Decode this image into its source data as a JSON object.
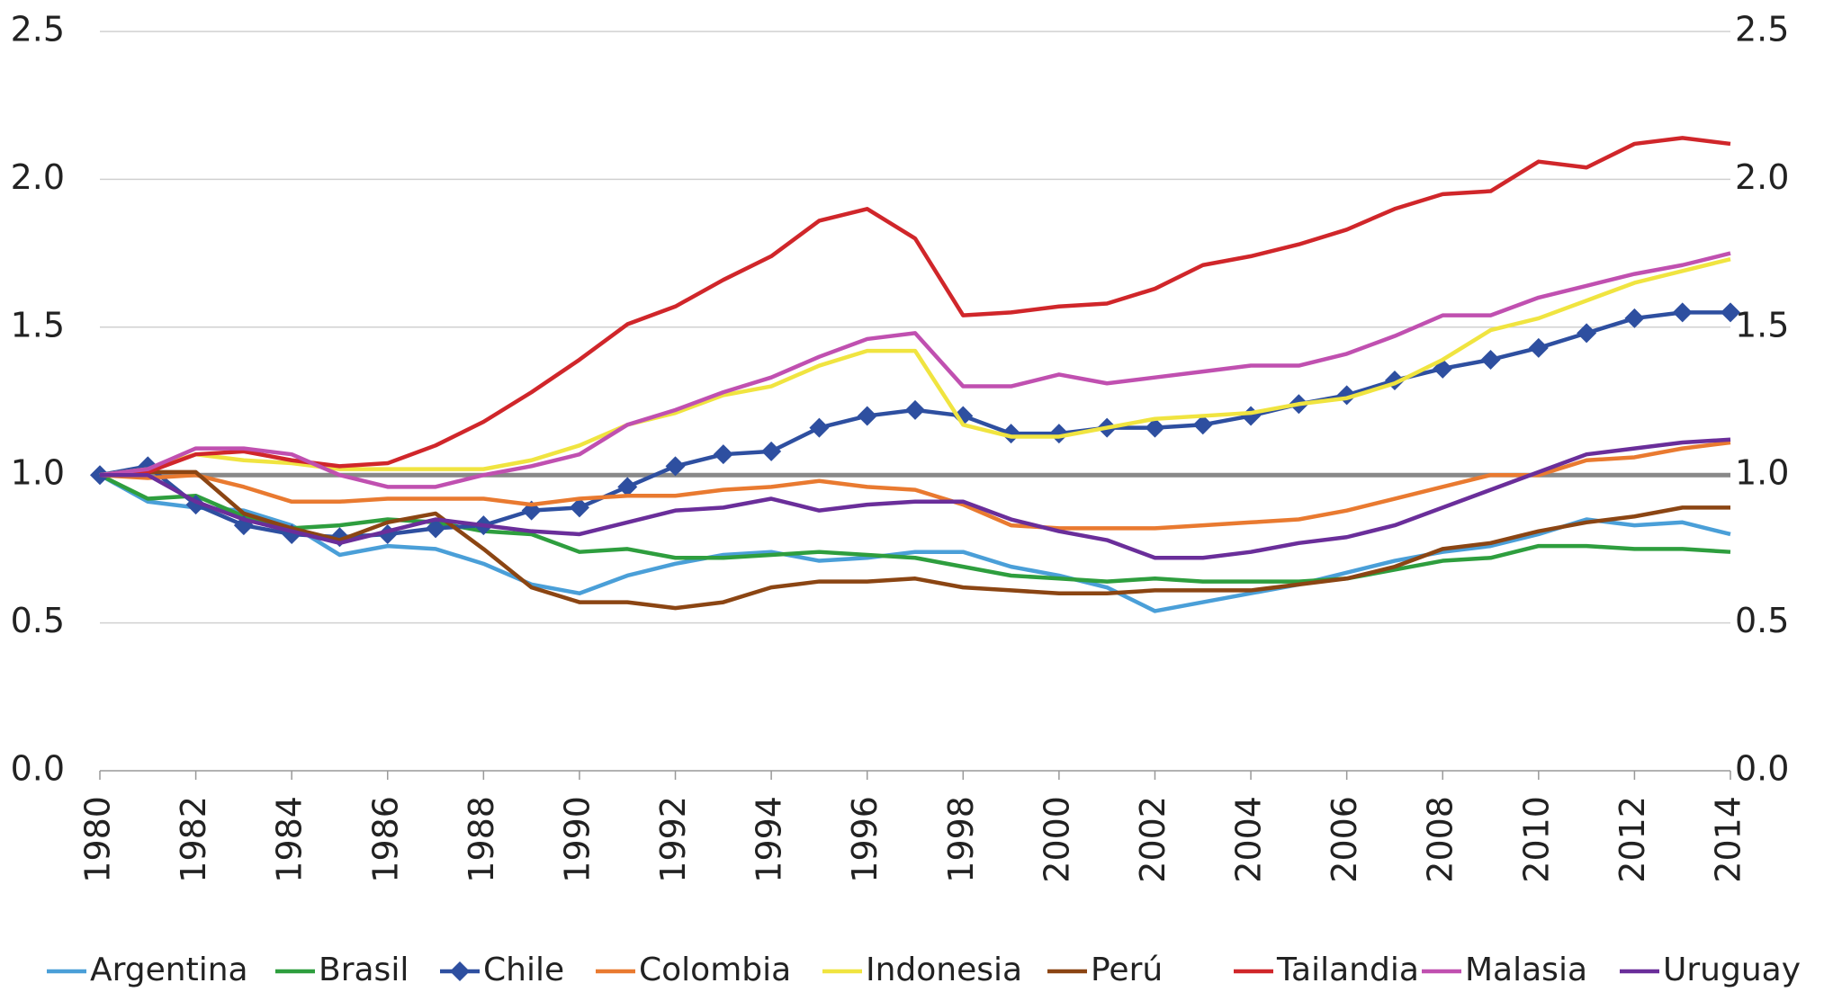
{
  "chart_data": {
    "type": "line",
    "x": [
      1980,
      1981,
      1982,
      1983,
      1984,
      1985,
      1986,
      1987,
      1988,
      1989,
      1990,
      1991,
      1992,
      1993,
      1994,
      1995,
      1996,
      1997,
      1998,
      1999,
      2000,
      2001,
      2002,
      2003,
      2004,
      2005,
      2006,
      2007,
      2008,
      2009,
      2010,
      2011,
      2012,
      2013,
      2014
    ],
    "xlim": [
      1980,
      2014
    ],
    "xticks": [
      1980,
      1982,
      1984,
      1986,
      1988,
      1990,
      1992,
      1994,
      1996,
      1998,
      2000,
      2002,
      2004,
      2006,
      2008,
      2010,
      2012,
      2014
    ],
    "ylim": [
      0,
      2.5
    ],
    "yticks": [
      {
        "value": 0,
        "label": "0.0"
      },
      0.5,
      {
        "value": 1,
        "label": "1.0"
      },
      1.5,
      {
        "value": 2,
        "label": "2.0"
      },
      2.5
    ],
    "y2lim": [
      0,
      2.5
    ],
    "y2ticks": [
      {
        "value": 0,
        "label": "0.0"
      },
      0.5,
      {
        "value": 1,
        "label": "1.0"
      },
      1.5,
      {
        "value": 2,
        "label": "2.0"
      },
      2.5
    ],
    "grid": true,
    "reference_line": 1,
    "legend": "bottom",
    "series": [
      {
        "name": "Argentina",
        "color": "#4a9fd8",
        "values": [
          1.0,
          0.91,
          0.89,
          0.88,
          0.83,
          0.73,
          0.76,
          0.75,
          0.7,
          0.63,
          0.6,
          0.66,
          0.7,
          0.73,
          0.74,
          0.71,
          0.72,
          0.74,
          0.74,
          0.69,
          0.66,
          0.62,
          0.54,
          0.57,
          0.6,
          0.63,
          0.67,
          0.71,
          0.74,
          0.76,
          0.8,
          0.85,
          0.83,
          0.84,
          0.8
        ]
      },
      {
        "name": "Brasil",
        "color": "#2e9e3e",
        "values": [
          1.0,
          0.92,
          0.93,
          0.86,
          0.82,
          0.83,
          0.85,
          0.84,
          0.81,
          0.8,
          0.74,
          0.75,
          0.72,
          0.72,
          0.73,
          0.74,
          0.73,
          0.72,
          0.69,
          0.66,
          0.65,
          0.64,
          0.65,
          0.64,
          0.64,
          0.64,
          0.65,
          0.68,
          0.71,
          0.72,
          0.76,
          0.76,
          0.75,
          0.75,
          0.74
        ]
      },
      {
        "name": "Chile",
        "color": "#2e4fa0",
        "marker": "diamond",
        "values": [
          1.0,
          1.03,
          0.9,
          0.83,
          0.8,
          0.79,
          0.8,
          0.82,
          0.83,
          0.88,
          0.89,
          0.96,
          1.03,
          1.07,
          1.08,
          1.16,
          1.2,
          1.22,
          1.2,
          1.14,
          1.14,
          1.16,
          1.16,
          1.17,
          1.2,
          1.24,
          1.27,
          1.32,
          1.36,
          1.39,
          1.43,
          1.48,
          1.53,
          1.55,
          1.55
        ]
      },
      {
        "name": "Colombia",
        "color": "#e97a30",
        "values": [
          1.0,
          0.99,
          1.0,
          0.96,
          0.91,
          0.91,
          0.92,
          0.92,
          0.92,
          0.9,
          0.92,
          0.93,
          0.93,
          0.95,
          0.96,
          0.98,
          0.96,
          0.95,
          0.9,
          0.83,
          0.82,
          0.82,
          0.82,
          0.83,
          0.84,
          0.85,
          0.88,
          0.92,
          0.96,
          1.0,
          1.0,
          1.05,
          1.06,
          1.09,
          1.11
        ]
      },
      {
        "name": "Indonesia",
        "color": "#f0e440",
        "values": [
          1.0,
          1.02,
          1.07,
          1.05,
          1.04,
          1.02,
          1.02,
          1.02,
          1.02,
          1.05,
          1.1,
          1.17,
          1.21,
          1.27,
          1.3,
          1.37,
          1.42,
          1.42,
          1.17,
          1.13,
          1.13,
          1.16,
          1.19,
          1.2,
          1.21,
          1.24,
          1.26,
          1.31,
          1.39,
          1.49,
          1.53,
          1.59,
          1.65,
          1.69,
          1.73
        ]
      },
      {
        "name": "Perú",
        "color": "#8b4513",
        "values": [
          1.0,
          1.01,
          1.01,
          0.87,
          0.82,
          0.78,
          0.84,
          0.87,
          0.75,
          0.62,
          0.57,
          0.57,
          0.55,
          0.57,
          0.62,
          0.64,
          0.64,
          0.65,
          0.62,
          0.61,
          0.6,
          0.6,
          0.61,
          0.61,
          0.61,
          0.63,
          0.65,
          0.69,
          0.75,
          0.77,
          0.81,
          0.84,
          0.86,
          0.89,
          0.89
        ]
      },
      {
        "name": "Tailandia",
        "color": "#d0262a",
        "values": [
          1.0,
          1.01,
          1.07,
          1.08,
          1.05,
          1.03,
          1.04,
          1.1,
          1.18,
          1.28,
          1.39,
          1.51,
          1.57,
          1.66,
          1.74,
          1.86,
          1.9,
          1.8,
          1.54,
          1.55,
          1.57,
          1.58,
          1.63,
          1.71,
          1.74,
          1.78,
          1.83,
          1.9,
          1.95,
          1.96,
          2.06,
          2.04,
          2.12,
          2.14,
          2.12
        ]
      },
      {
        "name": "Malasia",
        "color": "#c050b0",
        "values": [
          1.0,
          1.02,
          1.09,
          1.09,
          1.07,
          1.0,
          0.96,
          0.96,
          1.0,
          1.03,
          1.07,
          1.17,
          1.22,
          1.28,
          1.33,
          1.4,
          1.46,
          1.48,
          1.3,
          1.3,
          1.34,
          1.31,
          1.33,
          1.35,
          1.37,
          1.37,
          1.41,
          1.47,
          1.54,
          1.54,
          1.6,
          1.64,
          1.68,
          1.71,
          1.75
        ]
      },
      {
        "name": "Uruguay",
        "color": "#6a2e9a",
        "values": [
          1.0,
          1.0,
          0.91,
          0.85,
          0.81,
          0.77,
          0.81,
          0.85,
          0.83,
          0.81,
          0.8,
          0.84,
          0.88,
          0.89,
          0.92,
          0.88,
          0.9,
          0.91,
          0.91,
          0.85,
          0.81,
          0.78,
          0.72,
          0.72,
          0.74,
          0.77,
          0.79,
          0.83,
          0.89,
          0.95,
          1.01,
          1.07,
          1.09,
          1.11,
          1.12
        ]
      }
    ]
  }
}
